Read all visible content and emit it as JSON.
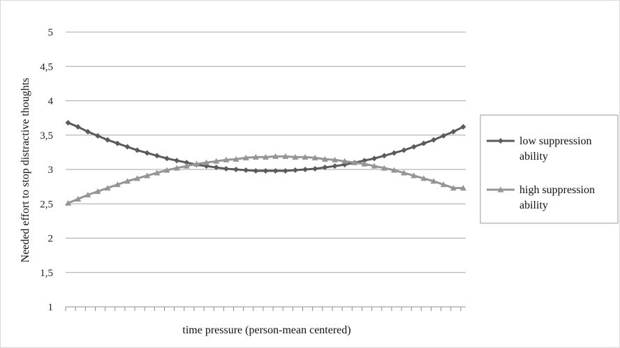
{
  "chart_data": {
    "type": "line",
    "title": "",
    "xlabel": "time pressure (person-mean centered)",
    "ylabel": "Needed effort to stop distractive thoughts",
    "ylim": [
      1,
      5
    ],
    "yticks": [
      1,
      1.5,
      2,
      2.5,
      3,
      3.5,
      4,
      4.5,
      5
    ],
    "ytick_labels": [
      "1",
      "1,5",
      "2",
      "2,5",
      "3",
      "3,5",
      "4",
      "4,5",
      "5"
    ],
    "x_points": 41,
    "grid": true,
    "legend_position": "right",
    "series": [
      {
        "name": "low suppression ability",
        "color": "#5a5a5a",
        "marker": "diamond",
        "values": [
          3.68,
          3.62,
          3.55,
          3.49,
          3.43,
          3.38,
          3.33,
          3.28,
          3.24,
          3.2,
          3.16,
          3.13,
          3.1,
          3.07,
          3.05,
          3.03,
          3.01,
          3.0,
          2.99,
          2.98,
          2.98,
          2.98,
          2.98,
          2.99,
          3.0,
          3.01,
          3.03,
          3.05,
          3.07,
          3.1,
          3.13,
          3.16,
          3.2,
          3.24,
          3.28,
          3.33,
          3.38,
          3.43,
          3.49,
          3.55,
          3.62
        ]
      },
      {
        "name": "high suppression ability",
        "color": "#959595",
        "marker": "triangle",
        "values": [
          2.51,
          2.57,
          2.63,
          2.68,
          2.73,
          2.78,
          2.83,
          2.87,
          2.91,
          2.95,
          2.99,
          3.02,
          3.05,
          3.08,
          3.1,
          3.12,
          3.14,
          3.15,
          3.17,
          3.18,
          3.18,
          3.19,
          3.19,
          3.18,
          3.18,
          3.17,
          3.15,
          3.14,
          3.12,
          3.1,
          3.08,
          3.05,
          3.02,
          2.99,
          2.95,
          2.91,
          2.87,
          2.83,
          2.78,
          2.73,
          2.73
        ]
      }
    ]
  }
}
